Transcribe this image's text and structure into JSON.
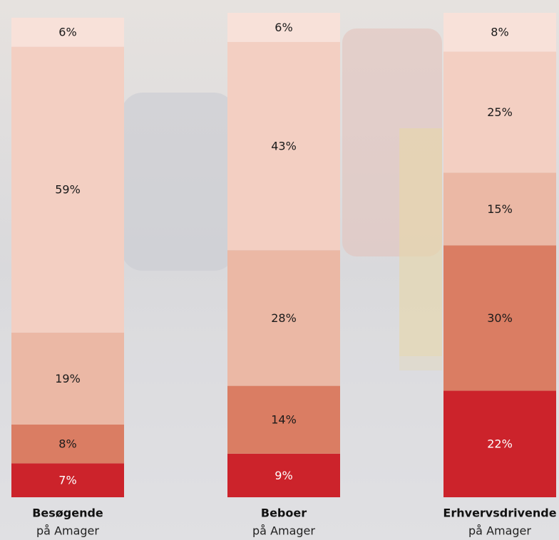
{
  "chart_data": {
    "type": "stacked_bar",
    "categories": [
      "Besøgende",
      "Beboer",
      "Erhvervsdrivende"
    ],
    "category_sublabels": [
      "på Amager",
      "på Amager",
      "på Amager"
    ],
    "series": [
      {
        "color": "#cc232b",
        "label_color": "#ffffff",
        "values": [
          7,
          9,
          22
        ],
        "value_labels": [
          "7%",
          "9%",
          "22%"
        ]
      },
      {
        "color": "#da7d63",
        "label_color": "#1a1a1a",
        "values": [
          8,
          14,
          30
        ],
        "value_labels": [
          "8%",
          "14%",
          "30%"
        ]
      },
      {
        "color": "#ebb8a5",
        "label_color": "#1a1a1a",
        "values": [
          19,
          28,
          15
        ],
        "value_labels": [
          "19%",
          "28%",
          "15%"
        ]
      },
      {
        "color": "#f3cfc2",
        "label_color": "#1a1a1a",
        "values": [
          59,
          43,
          25
        ],
        "value_labels": [
          "59%",
          "43%",
          "25%"
        ]
      },
      {
        "color": "#f8e1d9",
        "label_color": "#1a1a1a",
        "values": [
          6,
          6,
          8
        ],
        "value_labels": [
          "6%",
          "6%",
          "8%"
        ]
      }
    ]
  }
}
